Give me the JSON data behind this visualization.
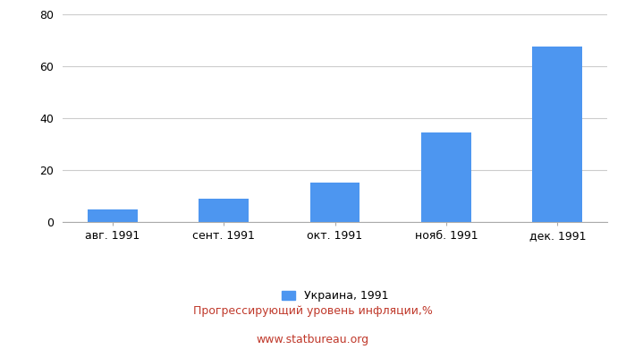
{
  "categories": [
    "авг. 1991",
    "сент. 1991",
    "окт. 1991",
    "нояб. 1991",
    "дек. 1991"
  ],
  "values": [
    4.8,
    9.0,
    15.3,
    34.5,
    67.5
  ],
  "bar_color": "#4d96f0",
  "ylim": [
    0,
    80
  ],
  "yticks": [
    0,
    20,
    40,
    60,
    80
  ],
  "title": "Прогрессирующий уровень инфляции,%",
  "subtitle": "www.statbureau.org",
  "legend_label": "Украина, 1991",
  "title_color": "#c0392b",
  "subtitle_color": "#c0392b",
  "background_color": "#ffffff",
  "grid_color": "#cccccc",
  "tick_label_fontsize": 9,
  "title_fontsize": 9,
  "legend_fontsize": 9
}
